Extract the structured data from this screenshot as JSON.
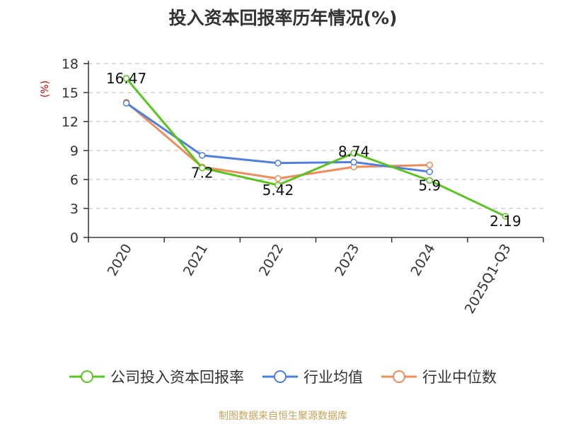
{
  "chart_data": {
    "type": "line",
    "title": "投入资本回报率历年情况(%)",
    "ylabel": "(%)",
    "xlabel": "",
    "categories": [
      "2020",
      "2021",
      "2022",
      "2023",
      "2024",
      "2025Q1-Q3"
    ],
    "yticks": [
      "0",
      "3",
      "6",
      "9",
      "12",
      "15",
      "18"
    ],
    "ylim": [
      0,
      18
    ],
    "grid": true,
    "legend_position": "bottom",
    "series": [
      {
        "name": "公司投入资本回报率",
        "color": "#5ac41e",
        "values": [
          16.47,
          7.2,
          5.42,
          8.74,
          5.9,
          2.19
        ],
        "labels": [
          "16.47",
          "7.2",
          "5.42",
          "8.74",
          "5.9",
          "2.19"
        ]
      },
      {
        "name": "行业均值",
        "color": "#4f7fe0",
        "values": [
          13.9,
          8.5,
          7.7,
          7.8,
          6.8,
          null
        ]
      },
      {
        "name": "行业中位数",
        "color": "#f08c5a",
        "values": [
          14.0,
          7.3,
          6.1,
          7.3,
          7.5,
          null
        ]
      }
    ]
  },
  "source": "制图数据来自恒生聚源数据库"
}
